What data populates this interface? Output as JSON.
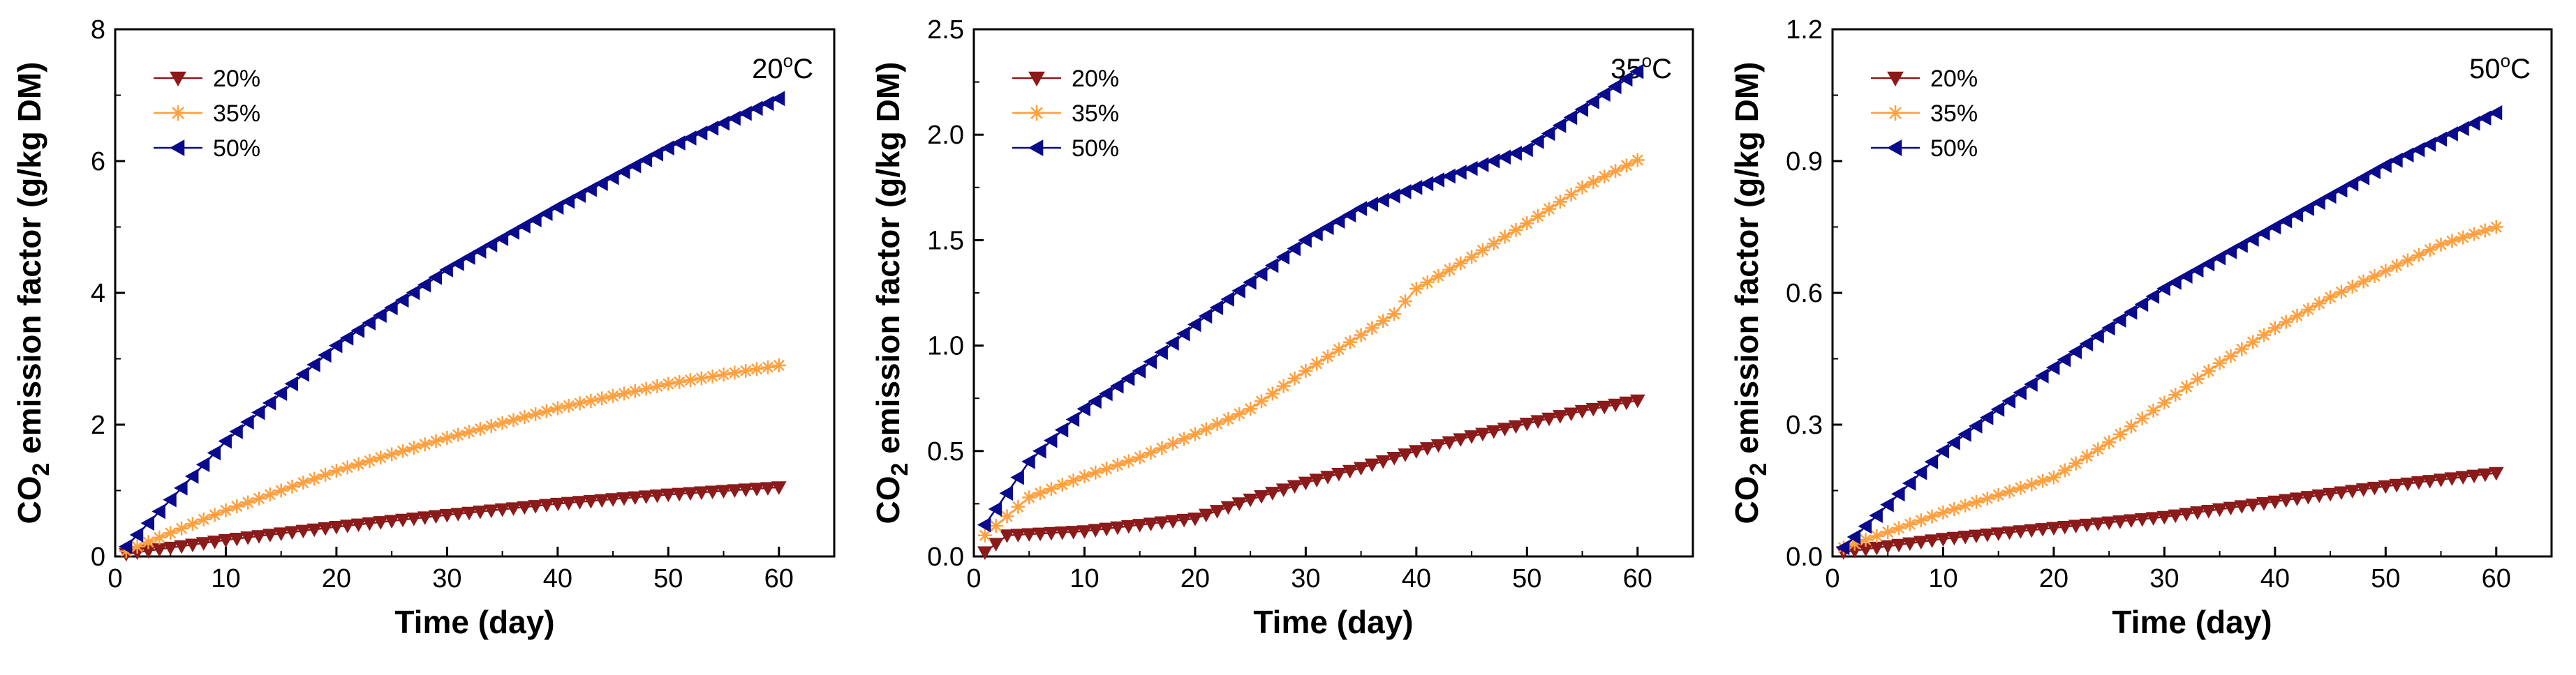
{
  "chart_data": [
    {
      "type": "line",
      "annotation": {
        "main": "20",
        "sup": "o",
        "unit": "C"
      },
      "xlabel": "Time (day)",
      "ylabel": {
        "pre": "CO",
        "sub": "2",
        "post": " emission factor (g/kg DM)"
      },
      "xlim": [
        0,
        65
      ],
      "ylim": [
        0,
        8
      ],
      "xticks": [
        0,
        10,
        20,
        30,
        40,
        50,
        60
      ],
      "yticks": [
        0,
        2,
        4,
        6,
        8
      ],
      "ytick_decimals": 0,
      "legend_position": "top-left",
      "series": [
        {
          "name": "20%",
          "marker": "triangle-down",
          "color": "#8b1a1a",
          "x": [
            1,
            10,
            20,
            30,
            40,
            50,
            60
          ],
          "y": [
            0.04,
            0.25,
            0.45,
            0.63,
            0.8,
            0.94,
            1.05
          ]
        },
        {
          "name": "35%",
          "marker": "asterisk",
          "color": "#ffa040",
          "x": [
            1,
            10,
            20,
            30,
            40,
            50,
            60
          ],
          "y": [
            0.08,
            0.7,
            1.3,
            1.8,
            2.25,
            2.62,
            2.9
          ]
        },
        {
          "name": "50%",
          "marker": "triangle-left",
          "color": "#0a0a8c",
          "x": [
            1,
            10,
            20,
            30,
            40,
            50,
            60
          ],
          "y": [
            0.15,
            1.75,
            3.2,
            4.35,
            5.3,
            6.2,
            6.95
          ]
        }
      ]
    },
    {
      "type": "line",
      "annotation": {
        "main": "35",
        "sup": "o",
        "unit": "C"
      },
      "xlabel": "Time (day)",
      "ylabel": {
        "pre": "CO",
        "sub": "2",
        "post": " emission factor (g/kg DM)"
      },
      "xlim": [
        0,
        65
      ],
      "ylim": [
        0,
        2.5
      ],
      "xticks": [
        0,
        10,
        20,
        30,
        40,
        50,
        60
      ],
      "yticks": [
        0.0,
        0.5,
        1.0,
        1.5,
        2.0,
        2.5
      ],
      "ytick_decimals": 1,
      "legend_position": "top-left",
      "series": [
        {
          "name": "20%",
          "marker": "triangle-down",
          "color": "#8b1a1a",
          "x": [
            1,
            3,
            10,
            15,
            20,
            25,
            30,
            35,
            40,
            45,
            50,
            55,
            60
          ],
          "y": [
            0.02,
            0.1,
            0.12,
            0.15,
            0.18,
            0.27,
            0.35,
            0.42,
            0.5,
            0.57,
            0.63,
            0.69,
            0.74
          ]
        },
        {
          "name": "35%",
          "marker": "asterisk",
          "color": "#ffa040",
          "x": [
            1,
            5,
            10,
            15,
            20,
            25,
            30,
            35,
            38,
            40,
            45,
            50,
            55,
            60
          ],
          "y": [
            0.1,
            0.28,
            0.38,
            0.47,
            0.58,
            0.7,
            0.88,
            1.05,
            1.15,
            1.27,
            1.42,
            1.58,
            1.75,
            1.88
          ]
        },
        {
          "name": "50%",
          "marker": "triangle-left",
          "color": "#0a0a8c",
          "x": [
            1,
            5,
            10,
            15,
            20,
            25,
            30,
            35,
            40,
            45,
            50,
            55,
            60
          ],
          "y": [
            0.15,
            0.45,
            0.7,
            0.88,
            1.1,
            1.3,
            1.5,
            1.65,
            1.75,
            1.84,
            1.93,
            2.12,
            2.3
          ]
        }
      ]
    },
    {
      "type": "line",
      "annotation": {
        "main": "50",
        "sup": "o",
        "unit": "C"
      },
      "xlabel": "Time (day)",
      "ylabel": {
        "pre": "CO",
        "sub": "2",
        "post": " emission factor (g/kg DM)"
      },
      "xlim": [
        0,
        65
      ],
      "ylim": [
        0,
        1.2
      ],
      "xticks": [
        0,
        10,
        20,
        30,
        40,
        50,
        60
      ],
      "yticks": [
        0.0,
        0.3,
        0.6,
        0.9,
        1.2
      ],
      "ytick_decimals": 1,
      "legend_position": "top-left",
      "series": [
        {
          "name": "20%",
          "marker": "triangle-down",
          "color": "#8b1a1a",
          "x": [
            1,
            10,
            20,
            30,
            40,
            50,
            60
          ],
          "y": [
            0.01,
            0.04,
            0.065,
            0.09,
            0.125,
            0.16,
            0.19
          ]
        },
        {
          "name": "35%",
          "marker": "asterisk",
          "color": "#ffa040",
          "x": [
            1,
            10,
            15,
            20,
            25,
            30,
            35,
            40,
            45,
            50,
            55,
            60
          ],
          "y": [
            0.02,
            0.1,
            0.14,
            0.18,
            0.26,
            0.35,
            0.44,
            0.52,
            0.59,
            0.65,
            0.71,
            0.75
          ]
        },
        {
          "name": "50%",
          "marker": "triangle-left",
          "color": "#0a0a8c",
          "x": [
            1,
            10,
            20,
            30,
            40,
            50,
            60
          ],
          "y": [
            0.02,
            0.24,
            0.43,
            0.61,
            0.75,
            0.89,
            1.01
          ]
        }
      ]
    }
  ]
}
